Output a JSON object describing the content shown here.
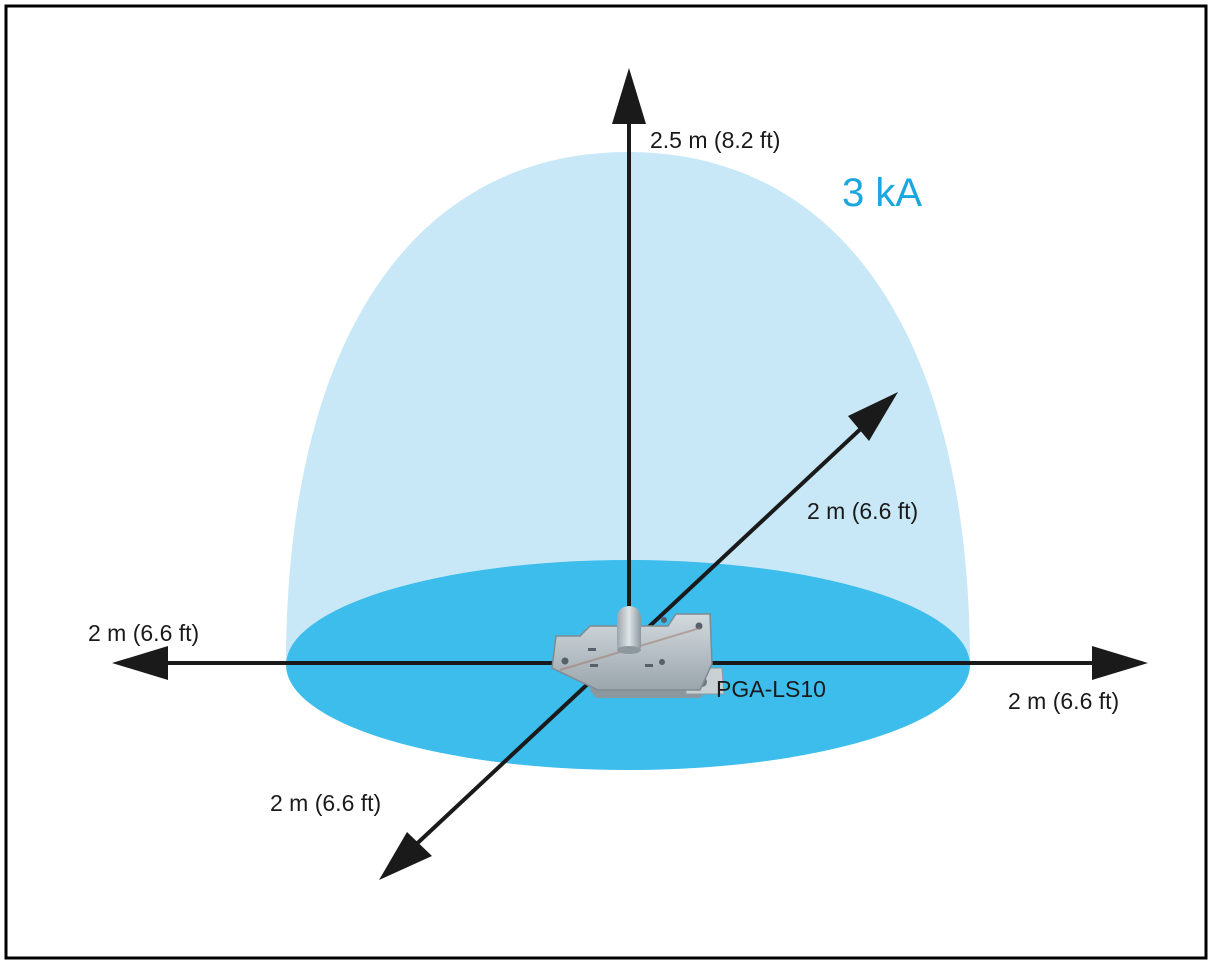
{
  "colors": {
    "dome_fill": "#c8e8f7",
    "base_fill": "#3dbdec",
    "current_label": "#1aa6df",
    "axis": "#1a1a1a",
    "frame": "#000000",
    "device": "#b9c3c9"
  },
  "icons": {
    "device": "lightning-sensor-device-icon"
  },
  "labels": {
    "current": "3 kA",
    "up": "2.5 m (8.2 ft)",
    "left": "2 m (6.6 ft)",
    "right": "2 m (6.6 ft)",
    "back": "2 m (6.6 ft)",
    "front": "2 m (6.6 ft)",
    "device": "PGA-LS10"
  }
}
